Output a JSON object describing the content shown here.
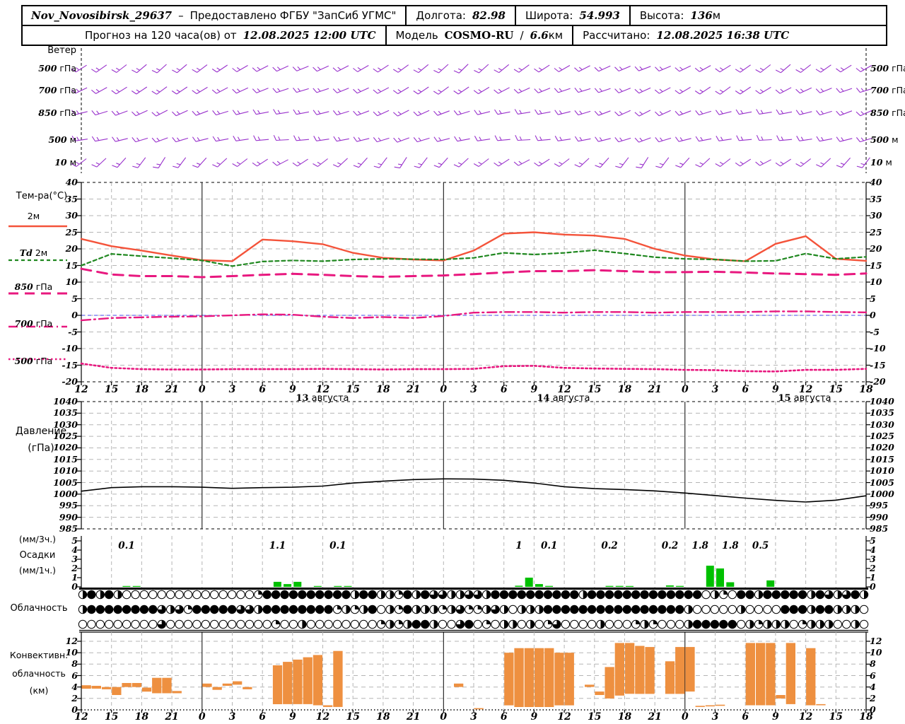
{
  "header": {
    "station": "Nov_Novosibirsk_29637",
    "dash": "–",
    "provider": "Предоставлено ФГБУ \"ЗапСиб УГМС\"",
    "lon_label": "Долгота:",
    "lon_value": "82.98",
    "lat_label": "Широта:",
    "lat_value": "54.993",
    "alt_label": "Высота:",
    "alt_value": "136",
    "alt_unit": "м",
    "forecast_prefix": "Прогноз на 120 часа(ов) от",
    "run_time": "12.08.2025 12:00 UTC",
    "model_label": "Модель",
    "model_name": "COSMO-RU",
    "model_res_slash": "/",
    "model_res_value": "6.6",
    "model_res_unit": "км",
    "calc_label": "Рассчитано:",
    "calc_time": "12.08.2025 16:38 UTC"
  },
  "panels": {
    "wind": {
      "title": "Ветер",
      "levels": [
        "500 гПа",
        "700 гПа",
        "850 гПа",
        "500 м",
        "10 м"
      ]
    },
    "temp": {
      "title": "Тем-ра(°C)",
      "legend": [
        "2м",
        "Td 2м",
        "850 гПа",
        "700 гПа",
        "500 гПа"
      ],
      "yticks": [
        40,
        35,
        30,
        25,
        20,
        15,
        10,
        5,
        0,
        -5,
        -10,
        -15,
        -20
      ]
    },
    "pressure": {
      "title_line1": "Давление",
      "title_line2": "(гПа)",
      "yticks": [
        1040,
        1035,
        1030,
        1025,
        1020,
        1015,
        1010,
        1005,
        1000,
        995,
        990,
        985
      ]
    },
    "precip": {
      "label_line1": "(мм/3ч.)",
      "label_line2": "Осадки",
      "label_line3": "(мм/1ч.)",
      "yticks": [
        5,
        4,
        3,
        2,
        1,
        0
      ]
    },
    "clouds": {
      "title": "Облачность"
    },
    "conv": {
      "label_line1": "Конвективн.",
      "label_line2": "облачность",
      "label_line3": "(км)",
      "yticks": [
        12,
        10,
        8,
        6,
        4,
        2,
        0
      ]
    }
  },
  "axis": {
    "hours_span": 78,
    "hour_labels": [
      "12",
      "15",
      "18",
      "21",
      "0",
      "3",
      "6",
      "9",
      "12",
      "15",
      "18",
      "21",
      "0",
      "3",
      "6",
      "9",
      "12",
      "15",
      "18",
      "21",
      "0",
      "3",
      "6",
      "9",
      "12",
      "15",
      "18"
    ],
    "date_labels": [
      "13 августа",
      "14 августа",
      "15 августа"
    ],
    "colors": {
      "grid": "#b5b5b5",
      "midnight": "#000000",
      "zero_line": "#4444ee"
    }
  },
  "chart_data": [
    {
      "type": "line",
      "title": "Температура (°C)",
      "x_step_hours": 3,
      "ylim": [
        -20,
        40
      ],
      "series": [
        {
          "name": "2м",
          "color": "#f4533a",
          "style": "solid",
          "values": [
            23.0,
            20.8,
            19.5,
            18.0,
            16.6,
            16.3,
            22.8,
            22.3,
            21.4,
            18.8,
            17.3,
            16.8,
            16.5,
            19.5,
            24.6,
            25.0,
            24.3,
            24.0,
            23.0,
            20.0,
            18.0,
            16.8,
            16.3,
            21.5,
            23.8,
            17.0,
            16.4
          ]
        },
        {
          "name": "Td 2м",
          "color": "#208820",
          "style": "dashed",
          "values": [
            15.0,
            18.5,
            17.8,
            17.2,
            16.5,
            14.8,
            16.2,
            16.5,
            16.3,
            16.8,
            17.0,
            16.9,
            16.8,
            17.3,
            18.8,
            18.3,
            18.8,
            19.6,
            18.6,
            17.5,
            17.0,
            16.8,
            16.3,
            16.4,
            18.6,
            17.0,
            17.6
          ]
        },
        {
          "name": "850 гПа",
          "color": "#e8187f",
          "style": "longdash",
          "values": [
            14.0,
            12.3,
            11.8,
            11.8,
            11.5,
            11.8,
            12.2,
            12.5,
            12.2,
            11.8,
            11.6,
            11.8,
            12.0,
            12.4,
            12.9,
            13.3,
            13.3,
            13.6,
            13.3,
            13.0,
            13.0,
            13.1,
            12.9,
            12.6,
            12.4,
            12.2,
            12.6
          ]
        },
        {
          "name": "700 гПа",
          "color": "#e8187f",
          "style": "dashdot",
          "values": [
            -1.5,
            -0.8,
            -0.6,
            -0.4,
            -0.3,
            0.0,
            0.3,
            0.2,
            -0.4,
            -0.8,
            -0.5,
            -0.8,
            -0.2,
            0.8,
            1.0,
            1.0,
            0.8,
            1.0,
            1.0,
            0.8,
            1.0,
            1.0,
            1.0,
            1.2,
            1.2,
            1.0,
            0.9
          ]
        },
        {
          "name": "500 гПа",
          "color": "#e8187f",
          "style": "dotted",
          "values": [
            -14.5,
            -15.8,
            -16.2,
            -16.3,
            -16.3,
            -16.2,
            -16.2,
            -16.2,
            -16.1,
            -16.2,
            -16.3,
            -16.2,
            -16.2,
            -16.1,
            -15.3,
            -15.2,
            -15.8,
            -16.0,
            -16.1,
            -16.2,
            -16.4,
            -16.5,
            -16.8,
            -16.9,
            -16.4,
            -16.4,
            -16.1
          ]
        }
      ]
    },
    {
      "type": "line",
      "title": "Давление (гПа)",
      "x_step_hours": 3,
      "ylim": [
        985,
        1040
      ],
      "series": [
        {
          "name": "Давление",
          "color": "#000000",
          "style": "solid",
          "values": [
            1001.3,
            1002.8,
            1003.2,
            1003.2,
            1003.0,
            1002.5,
            1002.8,
            1003.0,
            1003.5,
            1004.8,
            1005.6,
            1006.3,
            1006.6,
            1006.5,
            1006.0,
            1004.8,
            1003.2,
            1002.4,
            1002.0,
            1001.4,
            1000.5,
            999.4,
            998.3,
            997.3,
            996.6,
            997.4,
            999.3
          ]
        }
      ]
    },
    {
      "type": "bar",
      "title": "Осадки (мм/1ч.)",
      "color": "#00c000",
      "ylim": [
        0,
        5
      ],
      "bars": [
        [
          4,
          0.07
        ],
        [
          5,
          0.07
        ],
        [
          19,
          0.55
        ],
        [
          20,
          0.3
        ],
        [
          21,
          0.55
        ],
        [
          23,
          0.08
        ],
        [
          25,
          0.08
        ],
        [
          26,
          0.08
        ],
        [
          43,
          0.12
        ],
        [
          44,
          1.0
        ],
        [
          45,
          0.3
        ],
        [
          46,
          0.1
        ],
        [
          52,
          0.1
        ],
        [
          53,
          0.1
        ],
        [
          54,
          0.05
        ],
        [
          58,
          0.15
        ],
        [
          59,
          0.1
        ],
        [
          62,
          2.3
        ],
        [
          63,
          2.0
        ],
        [
          64,
          0.5
        ],
        [
          68,
          0.7
        ]
      ],
      "labels_3h": [
        [
          4.5,
          "0.1"
        ],
        [
          19.5,
          "1.1"
        ],
        [
          25.5,
          "0.1"
        ],
        [
          43.5,
          "1"
        ],
        [
          46.5,
          "0.1"
        ],
        [
          52.5,
          "0.2"
        ],
        [
          58.5,
          "0.2"
        ],
        [
          61.5,
          "1.8"
        ],
        [
          64.5,
          "1.8"
        ],
        [
          67.5,
          "0.5"
        ]
      ]
    },
    {
      "type": "table",
      "title": "Облачность (3 яруса, закрашенные четверти круга 0–4)",
      "rows": [
        [
          "24242000000000000",
          "00014444444444244221424332",
          "23324444444444244444444444",
          "440210442444442432342"
        ],
        [
          "24444444432314444",
          "43324444444412124021422212",
          "31123202224444444444444444",
          "200000200004442442220"
        ],
        [
          "00000000030000000",
          "00000100200000000121244200",
          "34010220201300002000121000",
          "244444021222012220020"
        ]
      ]
    },
    {
      "type": "bar",
      "title": "Конвективная облачность (км): [час, нижняя, верхняя]",
      "color": "#ee9040",
      "ylim": [
        0,
        12
      ],
      "bars": [
        [
          0,
          3.7,
          4.3
        ],
        [
          1,
          3.7,
          4.2
        ],
        [
          2,
          3.6,
          4.0
        ],
        [
          3,
          2.6,
          4.0
        ],
        [
          4,
          4.0,
          4.7
        ],
        [
          5,
          4.0,
          4.7
        ],
        [
          6,
          3.2,
          3.9
        ],
        [
          7,
          2.9,
          5.6
        ],
        [
          8,
          2.9,
          5.6
        ],
        [
          9,
          2.9,
          3.3
        ],
        [
          12,
          4.0,
          4.6
        ],
        [
          13,
          3.5,
          4.0
        ],
        [
          14,
          4.2,
          4.6
        ],
        [
          15,
          4.4,
          5.0
        ],
        [
          16,
          3.6,
          4.0
        ],
        [
          19,
          1.0,
          7.8
        ],
        [
          20,
          1.0,
          8.4
        ],
        [
          21,
          1.0,
          8.8
        ],
        [
          22,
          1.0,
          9.2
        ],
        [
          23,
          0.8,
          9.6
        ],
        [
          24,
          0.5,
          0.8
        ],
        [
          25,
          0.5,
          10.3
        ],
        [
          37,
          4.0,
          4.6
        ],
        [
          39,
          0.1,
          0.3
        ],
        [
          42,
          0.8,
          10.0
        ],
        [
          43,
          0.5,
          10.8
        ],
        [
          44,
          0.5,
          10.8
        ],
        [
          45,
          0.5,
          10.8
        ],
        [
          46,
          0.5,
          10.8
        ],
        [
          47,
          0.8,
          10.0
        ],
        [
          48,
          0.8,
          10.0
        ],
        [
          50,
          4.0,
          4.4
        ],
        [
          51,
          2.6,
          3.2
        ],
        [
          52,
          2.0,
          7.5
        ],
        [
          53,
          2.5,
          11.7
        ],
        [
          54,
          2.8,
          11.7
        ],
        [
          55,
          2.8,
          11.2
        ],
        [
          56,
          2.8,
          11.0
        ],
        [
          58,
          2.8,
          8.5
        ],
        [
          59,
          2.8,
          11.0
        ],
        [
          60,
          3.2,
          11.0
        ],
        [
          61,
          0.5,
          0.7
        ],
        [
          62,
          0.6,
          0.8
        ],
        [
          63,
          0.7,
          0.9
        ],
        [
          66,
          0.8,
          11.7
        ],
        [
          67,
          0.8,
          11.7
        ],
        [
          68,
          0.8,
          11.7
        ],
        [
          69,
          2.0,
          2.6
        ],
        [
          70,
          1.0,
          11.7
        ],
        [
          72,
          0.8,
          10.8
        ],
        [
          73,
          0.8,
          1.0
        ]
      ]
    },
    {
      "type": "windbarbs",
      "title": "Ветер (флюгерки по уровням)",
      "color": "#9932cc",
      "levels": [
        "500 гПа",
        "700 гПа",
        "850 гПа",
        "500 м",
        "10 м"
      ],
      "x_step_hours": 2,
      "angles": [
        [
          32,
          35,
          38,
          40,
          42,
          40,
          37,
          34,
          30,
          27,
          24,
          22,
          24,
          27,
          30,
          33,
          36,
          39,
          42,
          44,
          42,
          39,
          36,
          33,
          30,
          27,
          25,
          23,
          21,
          23,
          26,
          29,
          32,
          35,
          38,
          40,
          38,
          35,
          32,
          30
        ],
        [
          26,
          29,
          32,
          34,
          36,
          34,
          31,
          28,
          25,
          22,
          19,
          17,
          19,
          22,
          25,
          28,
          31,
          34,
          36,
          34,
          31,
          28,
          25,
          22,
          19,
          17,
          19,
          22,
          25,
          28,
          31,
          34,
          36,
          34,
          31,
          28,
          25,
          22,
          19,
          17
        ],
        [
          14,
          17,
          20,
          24,
          27,
          24,
          21,
          17,
          14,
          11,
          9,
          11,
          14,
          17,
          21,
          24,
          27,
          24,
          21,
          17,
          14,
          11,
          9,
          11,
          14,
          17,
          21,
          24,
          27,
          24,
          21,
          17,
          14,
          11,
          9,
          11,
          14,
          17,
          21,
          24
        ],
        [
          8,
          11,
          14,
          17,
          20,
          17,
          14,
          11,
          8,
          5,
          3,
          5,
          8,
          11,
          14,
          17,
          20,
          17,
          14,
          11,
          8,
          5,
          3,
          5,
          8,
          11,
          14,
          17,
          20,
          17,
          14,
          11,
          8,
          5,
          3,
          5,
          8,
          11,
          14,
          17
        ],
        [
          38,
          43,
          48,
          53,
          58,
          53,
          48,
          43,
          38,
          33,
          28,
          33,
          38,
          43,
          48,
          53,
          58,
          53,
          48,
          43,
          38,
          33,
          28,
          33,
          38,
          43,
          48,
          53,
          58,
          53,
          48,
          43,
          38,
          33,
          28,
          33,
          38,
          43,
          48,
          53
        ]
      ]
    }
  ]
}
